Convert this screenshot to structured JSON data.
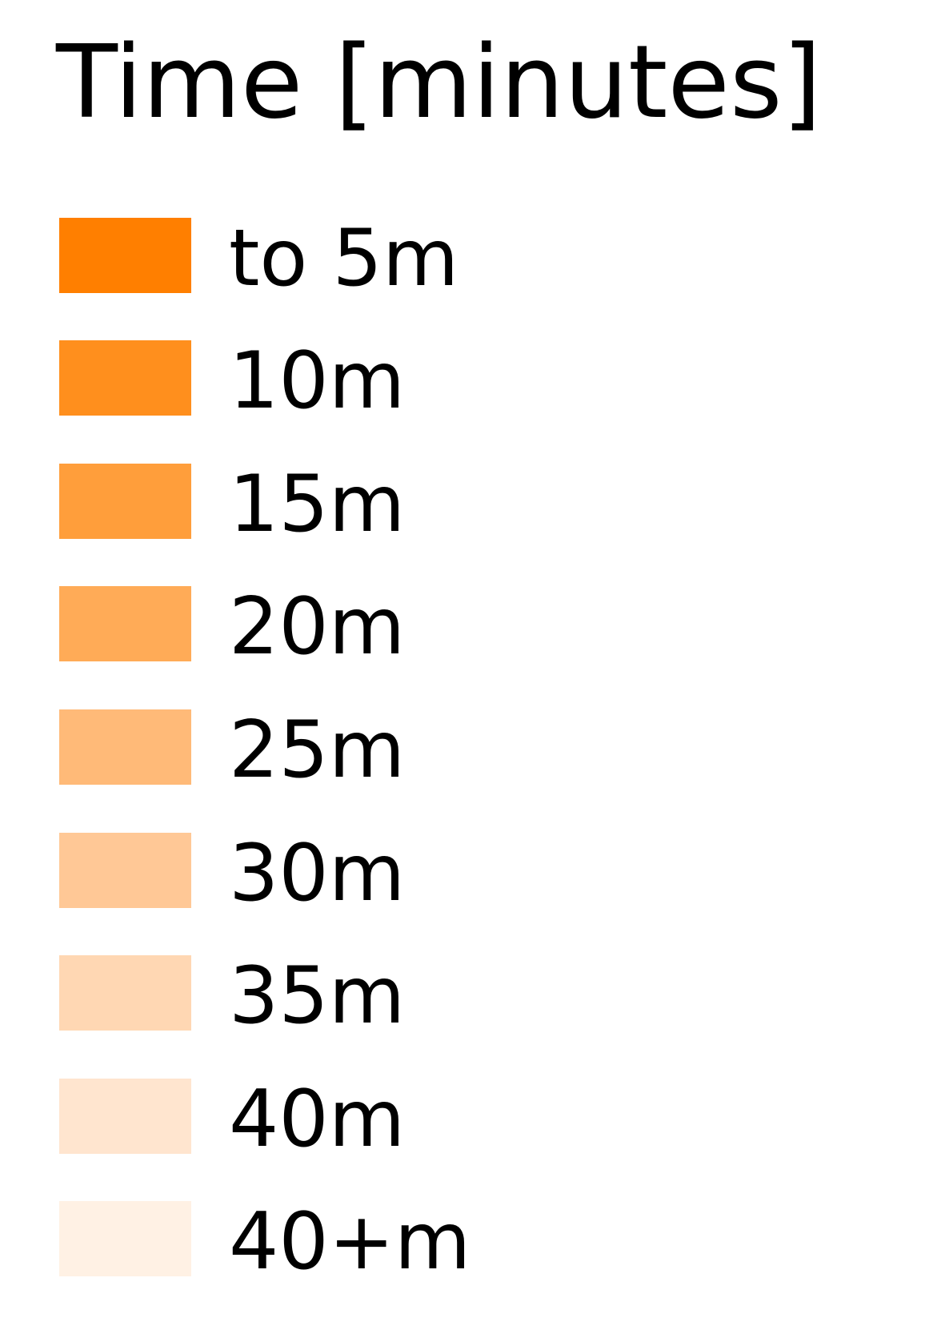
{
  "legend": {
    "title": "Time [minutes]",
    "items": [
      {
        "label": "to 5m",
        "color": "#ff7f00"
      },
      {
        "label": "10m",
        "color": "#ff8f1d"
      },
      {
        "label": "15m",
        "color": "#ff9e3b"
      },
      {
        "label": "20m",
        "color": "#ffab57"
      },
      {
        "label": "25m",
        "color": "#ffba78"
      },
      {
        "label": "30m",
        "color": "#ffc896"
      },
      {
        "label": "35m",
        "color": "#ffd7b3"
      },
      {
        "label": "40m",
        "color": "#ffe5cf"
      },
      {
        "label": "40+m",
        "color": "#fff1e4"
      }
    ]
  }
}
